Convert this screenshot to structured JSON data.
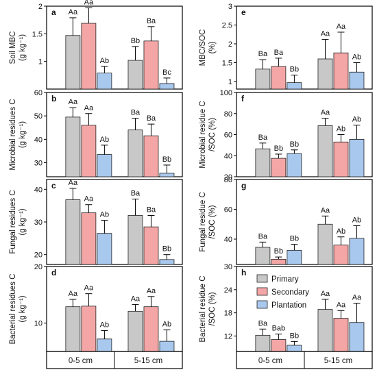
{
  "colors": {
    "Primary": "#c8c8c8",
    "Secondary": "#f4a6a6",
    "Plantation": "#a9c8ee"
  },
  "legend": [
    "Primary",
    "Secondary",
    "Plantation"
  ],
  "categories": [
    "0-5 cm",
    "5-15 cm"
  ],
  "chart_data": [
    {
      "panel": "a",
      "type": "bar",
      "ylabel": [
        "Soil MBC",
        "(g kg⁻¹)"
      ],
      "ylim": [
        0.5,
        2.0
      ],
      "yticks": [
        1.0,
        1.5,
        2.0
      ],
      "categories": [
        "0-5 cm",
        "5-15 cm"
      ],
      "series": [
        {
          "name": "Primary",
          "values": [
            1.47,
            1.02
          ],
          "err": [
            0.32,
            0.25
          ],
          "labels": [
            "Aa",
            "Bb"
          ]
        },
        {
          "name": "Secondary",
          "values": [
            1.69,
            1.37
          ],
          "err": [
            0.28,
            0.26
          ],
          "labels": [
            "Aa",
            "Ba"
          ]
        },
        {
          "name": "Plantation",
          "values": [
            0.79,
            0.6
          ],
          "err": [
            0.12,
            0.1
          ],
          "labels": [
            "Ab",
            "Bc"
          ]
        }
      ]
    },
    {
      "panel": "b",
      "type": "bar",
      "ylabel": [
        "Microbial residues C",
        "(g kg⁻¹)"
      ],
      "ylim": [
        24,
        60
      ],
      "yticks": [
        30,
        40,
        50,
        60
      ],
      "categories": [
        "0-5 cm",
        "5-15 cm"
      ],
      "series": [
        {
          "name": "Primary",
          "values": [
            49.5,
            44
          ],
          "err": [
            4,
            5
          ],
          "labels": [
            "Aa",
            "Ba"
          ]
        },
        {
          "name": "Secondary",
          "values": [
            46,
            41.5
          ],
          "err": [
            5,
            5
          ],
          "labels": [
            "Aa",
            "Ba"
          ]
        },
        {
          "name": "Plantation",
          "values": [
            33.5,
            25.5
          ],
          "err": [
            4,
            3.5
          ],
          "labels": [
            "Ab",
            "Bb"
          ]
        }
      ]
    },
    {
      "panel": "c",
      "type": "bar",
      "ylabel": [
        "Fungal residues C",
        "(g kg⁻¹)"
      ],
      "ylim": [
        17,
        43
      ],
      "yticks": [
        20,
        30,
        40
      ],
      "categories": [
        "0-5 cm",
        "5-15 cm"
      ],
      "series": [
        {
          "name": "Primary",
          "values": [
            36.8,
            32
          ],
          "err": [
            3.5,
            5
          ],
          "labels": [
            "Aa",
            "Ba"
          ]
        },
        {
          "name": "Secondary",
          "values": [
            32.8,
            28.5
          ],
          "err": [
            2.5,
            3.5
          ],
          "labels": [
            "Aa",
            "Ba"
          ]
        },
        {
          "name": "Plantation",
          "values": [
            26.5,
            18.5
          ],
          "err": [
            4,
            1.5
          ],
          "labels": [
            "Ab",
            "Bb"
          ]
        }
      ]
    },
    {
      "panel": "d",
      "type": "bar",
      "ylabel": [
        "Bacterial residues C",
        "(g kg⁻¹)"
      ],
      "ylim": [
        5,
        20
      ],
      "yticks": [
        10,
        20
      ],
      "categories": [
        "0-5 cm",
        "5-15 cm"
      ],
      "series": [
        {
          "name": "Primary",
          "values": [
            12.9,
            12.1
          ],
          "err": [
            1.3,
            1.2
          ],
          "labels": [
            "Aa",
            "Aa"
          ]
        },
        {
          "name": "Secondary",
          "values": [
            13.0,
            12.9
          ],
          "err": [
            2.2,
            1.8
          ],
          "labels": [
            "Aa",
            "Aa"
          ]
        },
        {
          "name": "Plantation",
          "values": [
            7.2,
            6.8
          ],
          "err": [
            1.5,
            2.0
          ],
          "labels": [
            "Ab",
            "Ab"
          ]
        }
      ]
    },
    {
      "panel": "e",
      "type": "bar",
      "ylabel": [
        "MBC/SOC",
        "(%)"
      ],
      "ylim": [
        0.8,
        3.0
      ],
      "yticks": [
        1.0,
        1.5,
        2.0,
        2.5,
        3.0
      ],
      "categories": [
        "0-5 cm",
        "5-15 cm"
      ],
      "series": [
        {
          "name": "Primary",
          "values": [
            1.33,
            1.6
          ],
          "err": [
            0.25,
            0.52
          ],
          "labels": [
            "Ba",
            "Aa"
          ]
        },
        {
          "name": "Secondary",
          "values": [
            1.4,
            1.76
          ],
          "err": [
            0.22,
            0.55
          ],
          "labels": [
            "Ba",
            "Aa"
          ]
        },
        {
          "name": "Plantation",
          "values": [
            0.97,
            1.25
          ],
          "err": [
            0.2,
            0.25
          ],
          "labels": [
            "Bb",
            "Ab"
          ]
        }
      ]
    },
    {
      "panel": "f",
      "type": "bar",
      "ylabel": [
        "Microbial residue C",
        "/SOC (%)"
      ],
      "ylim": [
        20,
        100
      ],
      "yticks": [
        20,
        40,
        60,
        80,
        100
      ],
      "categories": [
        "0-5 cm",
        "5-15 cm"
      ],
      "series": [
        {
          "name": "Primary",
          "values": [
            46.5,
            68.5
          ],
          "err": [
            5.5,
            7
          ],
          "labels": [
            "Ba",
            "Aa"
          ]
        },
        {
          "name": "Secondary",
          "values": [
            37.5,
            53
          ],
          "err": [
            4,
            7
          ],
          "labels": [
            "Bb",
            "Ab"
          ]
        },
        {
          "name": "Plantation",
          "values": [
            42,
            55.5
          ],
          "err": [
            3.5,
            13.5
          ],
          "labels": [
            "Bb",
            "Ab"
          ]
        }
      ]
    },
    {
      "panel": "g",
      "type": "bar",
      "ylabel": [
        "Fungal residue C",
        "/SOC (%)"
      ],
      "ylim": [
        23,
        80
      ],
      "yticks": [
        40,
        60,
        80
      ],
      "categories": [
        "0-5 cm",
        "5-15 cm"
      ],
      "series": [
        {
          "name": "Primary",
          "values": [
            34.5,
            50
          ],
          "err": [
            3.5,
            5.5
          ],
          "labels": [
            "Ba",
            "Aa"
          ]
        },
        {
          "name": "Secondary",
          "values": [
            26.5,
            36
          ],
          "err": [
            1.5,
            5.5
          ],
          "labels": [
            "Bb",
            "Ab"
          ]
        },
        {
          "name": "Plantation",
          "values": [
            32.5,
            40.5
          ],
          "err": [
            4,
            8.5
          ],
          "labels": [
            "Bb",
            "Ab"
          ]
        }
      ]
    },
    {
      "panel": "h",
      "type": "bar",
      "ylabel": [
        "Bacterial residue C",
        "/SOC (%)"
      ],
      "ylim": [
        8,
        30
      ],
      "yticks": [
        12,
        18,
        24,
        30
      ],
      "categories": [
        "0-5 cm",
        "5-15 cm"
      ],
      "series": [
        {
          "name": "Primary",
          "values": [
            12.2,
            18.9
          ],
          "err": [
            1.6,
            2.6
          ],
          "labels": [
            "Ba",
            "Aa"
          ]
        },
        {
          "name": "Secondary",
          "values": [
            11.1,
            16.6
          ],
          "err": [
            1.4,
            2.0
          ],
          "labels": [
            "Bab",
            "Aa"
          ]
        },
        {
          "name": "Plantation",
          "values": [
            9.6,
            15.5
          ],
          "err": [
            1.0,
            5.0
          ],
          "labels": [
            "Bb",
            "Aa"
          ]
        }
      ]
    }
  ]
}
